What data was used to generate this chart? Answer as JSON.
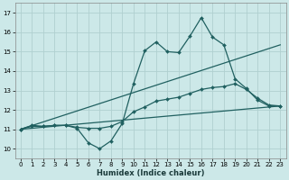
{
  "title": "",
  "xlabel": "Humidex (Indice chaleur)",
  "ylabel": "",
  "background_color": "#cce8e8",
  "grid_color": "#b0d0d0",
  "line_color": "#206060",
  "ylim": [
    9.5,
    17.5
  ],
  "xlim": [
    -0.5,
    23.5
  ],
  "yticks": [
    10,
    11,
    12,
    13,
    14,
    15,
    16,
    17
  ],
  "xticks": [
    0,
    1,
    2,
    3,
    4,
    5,
    6,
    7,
    8,
    9,
    10,
    11,
    12,
    13,
    14,
    15,
    16,
    17,
    18,
    19,
    20,
    21,
    22,
    23
  ],
  "series": [
    {
      "x": [
        0,
        1,
        2,
        3,
        4,
        5,
        6,
        7,
        8,
        9,
        10,
        11,
        12,
        13,
        14,
        15,
        16,
        17,
        18,
        19,
        20,
        21,
        22,
        23
      ],
      "y": [
        11.0,
        11.2,
        11.15,
        11.2,
        11.2,
        11.05,
        10.3,
        10.0,
        10.4,
        11.3,
        13.35,
        15.05,
        15.5,
        15.0,
        14.95,
        15.8,
        16.75,
        15.75,
        15.35,
        13.6,
        13.1,
        12.5,
        12.2,
        12.2
      ],
      "marker": true
    },
    {
      "x": [
        0,
        1,
        2,
        3,
        4,
        5,
        6,
        7,
        8,
        9,
        10,
        11,
        12,
        13,
        14,
        15,
        16,
        17,
        18,
        19,
        20,
        21,
        22,
        23
      ],
      "y": [
        11.0,
        11.15,
        11.15,
        11.2,
        11.2,
        11.1,
        11.05,
        11.05,
        11.15,
        11.4,
        11.9,
        12.15,
        12.45,
        12.55,
        12.65,
        12.85,
        13.05,
        13.15,
        13.2,
        13.35,
        13.05,
        12.6,
        12.25,
        12.2
      ],
      "marker": true
    },
    {
      "x": [
        0,
        23
      ],
      "y": [
        11.0,
        15.35
      ],
      "marker": false
    },
    {
      "x": [
        0,
        23
      ],
      "y": [
        11.0,
        12.2
      ],
      "marker": false
    }
  ]
}
